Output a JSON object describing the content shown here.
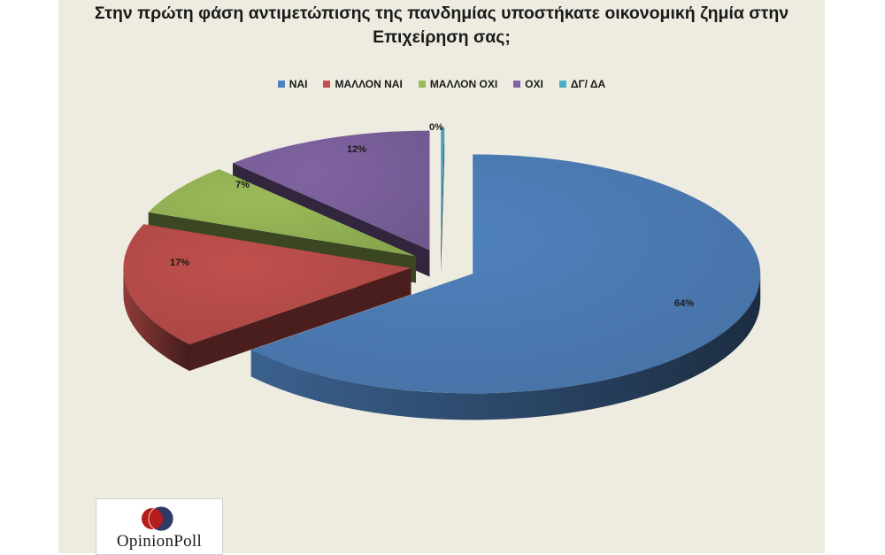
{
  "chart_data": {
    "type": "pie",
    "title_lines": [
      "Στην πρώτη φάση αντιμετώπισης της πανδημίας υποστήκατε οικονομική ζημία στην",
      "Επιχείρηση σας;"
    ],
    "legend_position": "top",
    "slices": [
      {
        "name": "ΝΑΙ",
        "value": 64,
        "label": "64%",
        "color": "#4f81bd"
      },
      {
        "name": "ΜΑΛΛΟΝ ΝΑΙ",
        "value": 17,
        "label": "17%",
        "color": "#c0504d"
      },
      {
        "name": "ΜΑΛΛΟΝ ΟΧΙ",
        "value": 7,
        "label": "7%",
        "color": "#9bbb59"
      },
      {
        "name": "ΟΧΙ",
        "value": 12,
        "label": "12%",
        "color": "#8064a2"
      },
      {
        "name": "ΔΓ/ ΔΑ",
        "value": 0,
        "label": "0%",
        "color": "#4bacc6"
      }
    ]
  },
  "logo": {
    "text": "OpinionPoll"
  }
}
